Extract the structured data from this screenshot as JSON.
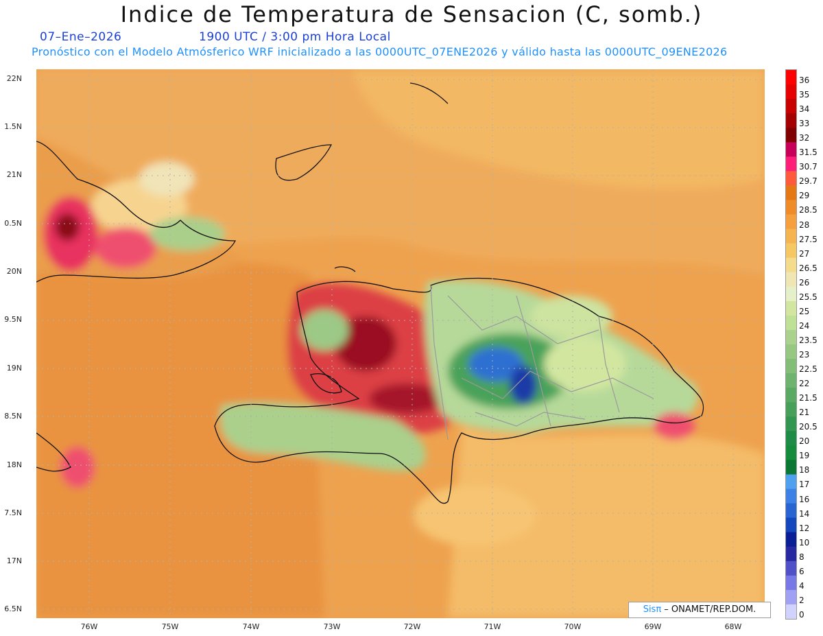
{
  "title": "Indice de Temperatura de Sensacion (C, somb.)",
  "date": "07–Ene–2026",
  "time_line": "1900 UTC / 3:00 pm Hora Local",
  "forecast_line": "Pronóstico con el Modelo Atmósferico WRF inicializado a las 0000UTC_07ENE2026 y válido hasta las  0000UTC_09ENE2026",
  "credit": {
    "logo": "Sisπ",
    "text": " – ONAMET/REP.DOM."
  },
  "lat_labels": [
    "22N",
    "1.5N",
    "21N",
    "0.5N",
    "20N",
    "9.5N",
    "19N",
    "8.5N",
    "18N",
    "7.5N",
    "17N",
    "6.5N"
  ],
  "lon_labels": [
    "76W",
    "75W",
    "74W",
    "73W",
    "72W",
    "71W",
    "70W",
    "69W",
    "68W"
  ],
  "colorbar": {
    "labels": [
      "36",
      "35",
      "34",
      "33",
      "32",
      "31.5",
      "30.7",
      "29.7",
      "29",
      "28.5",
      "28",
      "27.5",
      "27",
      "26.5",
      "26",
      "25.5",
      "25",
      "24",
      "23.5",
      "23",
      "22.5",
      "22",
      "21.5",
      "21",
      "20.5",
      "20",
      "19",
      "18",
      "17",
      "16",
      "14",
      "12",
      "10",
      "8",
      "6",
      "4",
      "2",
      "0"
    ],
    "colors": [
      "#ff0000",
      "#e60000",
      "#c80000",
      "#a50000",
      "#800000",
      "#c8005a",
      "#ff1e78",
      "#ff5a3c",
      "#e67814",
      "#f08c28",
      "#f5a03c",
      "#f5b450",
      "#f5c864",
      "#f5dc8c",
      "#f0e6b4",
      "#e6f0c8",
      "#d2e6a0",
      "#bee196",
      "#aad28c",
      "#96c882",
      "#82be78",
      "#6eb46e",
      "#5aaa64",
      "#46a05a",
      "#329650",
      "#1e8c46",
      "#148c3c",
      "#0a7832",
      "#50a0f0",
      "#3c82e6",
      "#2864d2",
      "#1446be",
      "#0a1e96",
      "#2828a0",
      "#5050c8",
      "#7878e6",
      "#a0a0f5",
      "#d2d2ff"
    ]
  }
}
